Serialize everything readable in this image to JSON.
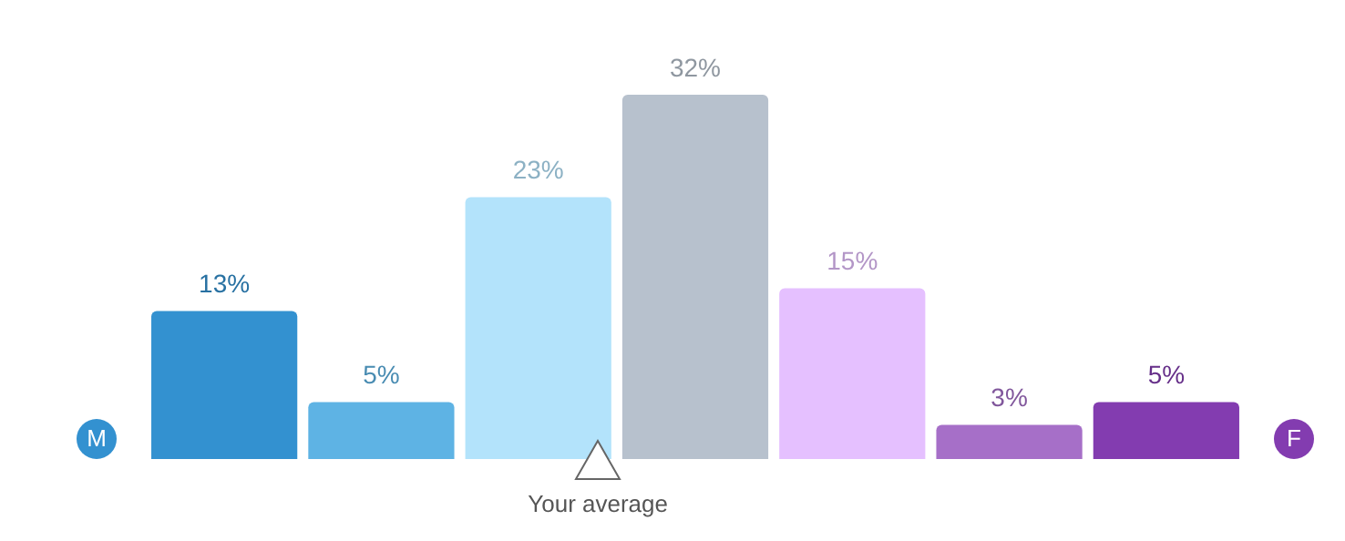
{
  "chart_data": {
    "type": "bar",
    "categories": [
      null,
      null,
      null,
      null,
      null,
      null,
      null
    ],
    "values": [
      13,
      5,
      23,
      32,
      15,
      3,
      5
    ],
    "colors": [
      "#3391d0",
      "#5eb3e4",
      "#b3e3fb",
      "#b7c1cd",
      "#e5c0ff",
      "#a66fc8",
      "#833cb0"
    ],
    "value_labels": [
      "13%",
      "5%",
      "23%",
      "32%",
      "15%",
      "3%",
      "5%"
    ],
    "annotations": [
      "M",
      "F",
      "Your average"
    ]
  }
}
